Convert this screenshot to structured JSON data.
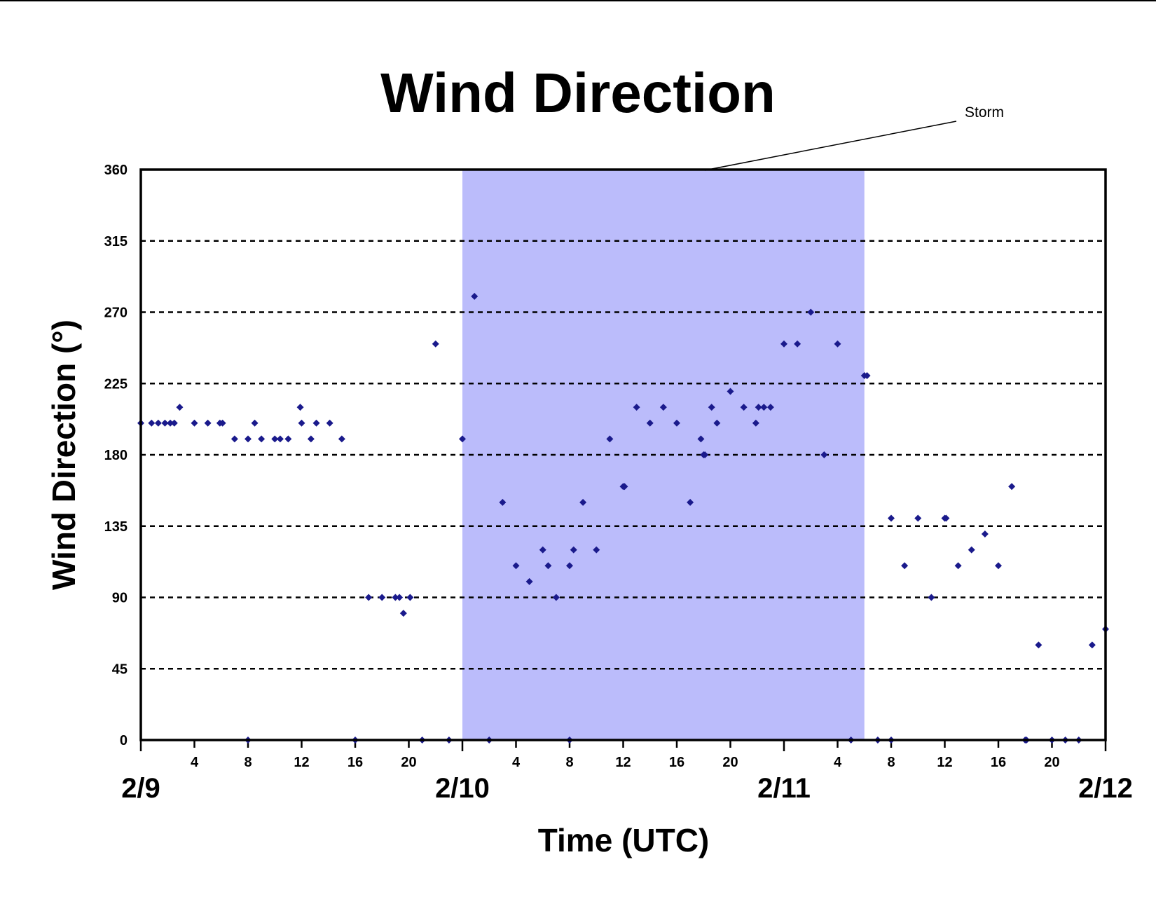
{
  "colors": {
    "marker": "#1a1a8c",
    "storm_band": "#bbbcfb",
    "grid": "#000000",
    "frame": "#000000"
  },
  "chart_data": {
    "type": "scatter",
    "title": "Wind Direction",
    "xlabel": "Time (UTC)",
    "ylabel": "Wind Direction (°)",
    "ylim": [
      0,
      360
    ],
    "yticks": [
      0,
      45,
      90,
      135,
      180,
      225,
      270,
      315,
      360
    ],
    "xlim": [
      "2/9 00:00",
      "2/12 00:00"
    ],
    "x_unit": "hours since 2/9 00 UTC",
    "x_hour_ticks": [
      {
        "label": "4",
        "x": 4
      },
      {
        "label": "8",
        "x": 8
      },
      {
        "label": "12",
        "x": 12
      },
      {
        "label": "16",
        "x": 16
      },
      {
        "label": "20",
        "x": 20
      },
      {
        "label": "4",
        "x": 28
      },
      {
        "label": "8",
        "x": 32
      },
      {
        "label": "12",
        "x": 36
      },
      {
        "label": "16",
        "x": 40
      },
      {
        "label": "20",
        "x": 44
      },
      {
        "label": "4",
        "x": 52
      },
      {
        "label": "8",
        "x": 56
      },
      {
        "label": "12",
        "x": 60
      },
      {
        "label": "16",
        "x": 64
      },
      {
        "label": "20",
        "x": 68
      }
    ],
    "x_day_labels": [
      {
        "label": "2/9",
        "x": 0
      },
      {
        "label": "2/10",
        "x": 24
      },
      {
        "label": "2/11",
        "x": 48
      },
      {
        "label": "2/12",
        "x": 72
      }
    ],
    "grid": "horizontal dashed",
    "annotation": {
      "text": "Storm",
      "x_start": 24,
      "x_end": 54
    },
    "series": [
      {
        "values": [
          [
            0,
            200
          ],
          [
            0.8,
            200
          ],
          [
            1.3,
            200
          ],
          [
            1.8,
            200
          ],
          [
            2.2,
            200
          ],
          [
            2.5,
            200
          ],
          [
            2.9,
            210
          ],
          [
            4,
            200
          ],
          [
            5,
            200
          ],
          [
            5.9,
            200
          ],
          [
            6.1,
            200
          ],
          [
            7,
            190
          ],
          [
            8,
            190
          ],
          [
            8,
            0
          ],
          [
            8.5,
            200
          ],
          [
            9,
            190
          ],
          [
            10,
            190
          ],
          [
            10.4,
            190
          ],
          [
            11,
            190
          ],
          [
            11.9,
            210
          ],
          [
            12,
            200
          ],
          [
            12.7,
            190
          ],
          [
            13.1,
            200
          ],
          [
            14.1,
            200
          ],
          [
            15,
            190
          ],
          [
            16,
            0
          ],
          [
            17,
            90
          ],
          [
            18,
            90
          ],
          [
            19,
            90
          ],
          [
            19.3,
            90
          ],
          [
            19.6,
            80
          ],
          [
            20.1,
            90
          ],
          [
            21,
            0
          ],
          [
            22,
            250
          ],
          [
            23,
            0
          ],
          [
            24,
            190
          ],
          [
            24.9,
            280
          ],
          [
            26,
            0
          ],
          [
            27,
            150
          ],
          [
            28,
            110
          ],
          [
            29,
            100
          ],
          [
            30,
            120
          ],
          [
            30.4,
            110
          ],
          [
            31,
            90
          ],
          [
            32,
            110
          ],
          [
            32,
            0
          ],
          [
            32.3,
            120
          ],
          [
            33,
            150
          ],
          [
            34,
            120
          ],
          [
            35,
            190
          ],
          [
            36,
            160
          ],
          [
            36.1,
            160
          ],
          [
            37,
            210
          ],
          [
            38,
            200
          ],
          [
            39,
            210
          ],
          [
            40,
            200
          ],
          [
            41,
            150
          ],
          [
            41.8,
            190
          ],
          [
            42,
            180
          ],
          [
            42.1,
            180
          ],
          [
            42.6,
            210
          ],
          [
            43,
            200
          ],
          [
            44,
            220
          ],
          [
            45,
            210
          ],
          [
            45.9,
            200
          ],
          [
            46.1,
            210
          ],
          [
            46.5,
            210
          ],
          [
            47,
            210
          ],
          [
            48,
            250
          ],
          [
            49,
            250
          ],
          [
            50,
            270
          ],
          [
            51,
            180
          ],
          [
            52,
            250
          ],
          [
            53,
            0
          ],
          [
            54,
            230
          ],
          [
            54.2,
            230
          ],
          [
            55,
            0
          ],
          [
            56,
            140
          ],
          [
            56,
            0
          ],
          [
            57,
            110
          ],
          [
            58,
            140
          ],
          [
            59,
            90
          ],
          [
            60,
            140
          ],
          [
            60.1,
            140
          ],
          [
            61,
            110
          ],
          [
            62,
            120
          ],
          [
            63,
            130
          ],
          [
            64,
            110
          ],
          [
            65,
            160
          ],
          [
            66,
            0
          ],
          [
            66.1,
            0
          ],
          [
            67,
            60
          ],
          [
            68,
            0
          ],
          [
            69,
            0
          ],
          [
            70,
            0
          ],
          [
            71,
            60
          ],
          [
            72,
            70
          ]
        ]
      }
    ]
  }
}
